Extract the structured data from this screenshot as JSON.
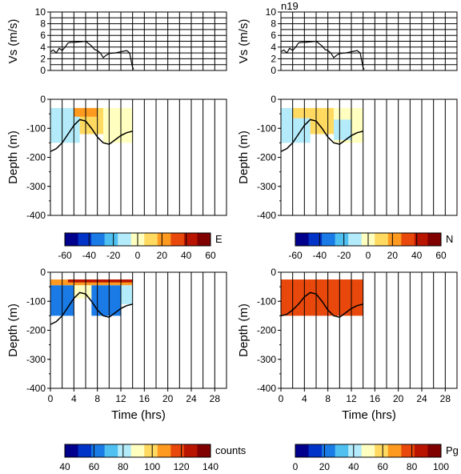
{
  "figure_label": "n19",
  "chart_data": [
    {
      "id": "vs-left",
      "type": "line",
      "ylabel": "Vs (m/s)",
      "ylim": [
        0,
        10
      ],
      "yticks": [
        "0",
        "2",
        "4",
        "6",
        "8",
        "10"
      ],
      "xlim": [
        0,
        30
      ],
      "grid": true,
      "series": [
        {
          "x": [
            0,
            0.5,
            1,
            1.5,
            2,
            2.5,
            3,
            3.5,
            4,
            5,
            6,
            7,
            7.5,
            8,
            8.5,
            9,
            9.5,
            10,
            11,
            12,
            13,
            13.5,
            14,
            14.2
          ],
          "y": [
            3.2,
            3.5,
            3.0,
            3.8,
            3.4,
            4.0,
            4.7,
            4.8,
            4.8,
            4.9,
            5.0,
            4.2,
            3.6,
            3.4,
            3.0,
            2.2,
            2.6,
            2.9,
            3.0,
            3.2,
            3.4,
            3.0,
            0.5,
            0.2
          ]
        }
      ]
    },
    {
      "id": "vs-right",
      "type": "line",
      "ylabel": "Vs (m/s)",
      "ylim": [
        0,
        10
      ],
      "yticks": [
        "0",
        "2",
        "4",
        "6",
        "8",
        "10"
      ],
      "xlim": [
        0,
        30
      ],
      "grid": true,
      "series": [
        {
          "x": [
            0,
            0.5,
            1,
            1.5,
            2,
            2.5,
            3,
            3.5,
            4,
            5,
            6,
            7,
            7.5,
            8,
            8.5,
            9,
            9.5,
            10,
            11,
            12,
            13,
            13.5,
            14,
            14.2
          ],
          "y": [
            3.2,
            3.5,
            3.0,
            3.8,
            3.4,
            4.0,
            4.7,
            4.8,
            4.8,
            4.9,
            5.0,
            4.2,
            3.6,
            3.4,
            3.0,
            2.2,
            2.6,
            2.9,
            3.0,
            3.2,
            3.4,
            3.0,
            0.5,
            0.2
          ]
        }
      ]
    },
    {
      "id": "depth-E",
      "type": "heatmap",
      "ylabel": "Depth (m)",
      "ylim": [
        -400,
        0
      ],
      "yticks": [
        "0",
        "-100",
        "-200",
        "-300",
        "-400"
      ],
      "xlim": [
        0,
        30
      ],
      "palette": "E",
      "seabed": {
        "x": [
          0,
          1,
          2,
          3,
          4,
          5,
          6,
          7,
          8,
          9,
          10,
          11,
          12,
          13,
          14
        ],
        "y": [
          -180,
          -170,
          -150,
          -120,
          -90,
          -70,
          -75,
          -100,
          -130,
          -150,
          -155,
          -140,
          -125,
          -115,
          -110
        ]
      },
      "blocks": [
        {
          "x0": 0,
          "x1": 5,
          "y0": -30,
          "y1": -150,
          "level": 0.42
        },
        {
          "x0": 5,
          "x1": 9,
          "y0": -30,
          "y1": -120,
          "level": 0.58
        },
        {
          "x0": 9,
          "x1": 14,
          "y0": -30,
          "y1": -150,
          "level": 0.52
        },
        {
          "x0": 4,
          "x1": 8,
          "y0": -30,
          "y1": -60,
          "level": 0.66
        },
        {
          "x0": 0,
          "x1": 3,
          "y0": -60,
          "y1": -120,
          "level": 0.36
        }
      ]
    },
    {
      "id": "depth-N",
      "type": "heatmap",
      "ylabel": "Depth (m)",
      "ylim": [
        -400,
        0
      ],
      "yticks": [
        "0",
        "-100",
        "-200",
        "-300",
        "-400"
      ],
      "xlim": [
        0,
        30
      ],
      "palette": "N",
      "seabed": {
        "x": [
          0,
          1,
          2,
          3,
          4,
          5,
          6,
          7,
          8,
          9,
          10,
          11,
          12,
          13,
          14
        ],
        "y": [
          -180,
          -170,
          -150,
          -120,
          -90,
          -70,
          -75,
          -100,
          -130,
          -150,
          -155,
          -140,
          -125,
          -115,
          -110
        ]
      },
      "blocks": [
        {
          "x0": 0,
          "x1": 5,
          "y0": -30,
          "y1": -150,
          "level": 0.44
        },
        {
          "x0": 5,
          "x1": 9,
          "y0": -30,
          "y1": -120,
          "level": 0.56
        },
        {
          "x0": 9,
          "x1": 14,
          "y0": -30,
          "y1": -150,
          "level": 0.5
        },
        {
          "x0": 2,
          "x1": 7,
          "y0": -30,
          "y1": -65,
          "level": 0.64
        },
        {
          "x0": 9,
          "x1": 12,
          "y0": -70,
          "y1": -140,
          "level": 0.4
        }
      ]
    },
    {
      "id": "depth-counts",
      "type": "heatmap",
      "ylabel": "Depth (m)",
      "ylim": [
        -400,
        0
      ],
      "yticks": [
        "0",
        "-100",
        "-200",
        "-300",
        "-400"
      ],
      "xlim": [
        0,
        30
      ],
      "xticks": [
        "0",
        "4",
        "8",
        "12",
        "16",
        "20",
        "24",
        "28"
      ],
      "xlabel": "Time (hrs)",
      "palette": "counts",
      "seabed": {
        "x": [
          0,
          1,
          2,
          3,
          4,
          5,
          6,
          7,
          8,
          9,
          10,
          11,
          12,
          13,
          14
        ],
        "y": [
          -180,
          -170,
          -150,
          -120,
          -90,
          -70,
          -75,
          -100,
          -130,
          -150,
          -155,
          -140,
          -125,
          -115,
          -110
        ]
      },
      "blocks": [
        {
          "x0": 0,
          "x1": 14,
          "y0": -25,
          "y1": -45,
          "level": 0.7
        },
        {
          "x0": 3,
          "x1": 14,
          "y0": -25,
          "y1": -35,
          "level": 0.92
        },
        {
          "x0": 0,
          "x1": 4,
          "y0": -45,
          "y1": -150,
          "level": 0.22
        },
        {
          "x0": 4,
          "x1": 7,
          "y0": -45,
          "y1": -90,
          "level": 0.45
        },
        {
          "x0": 7,
          "x1": 12,
          "y0": -45,
          "y1": -150,
          "level": 0.2
        },
        {
          "x0": 12,
          "x1": 14,
          "y0": -45,
          "y1": -110,
          "level": 0.4
        }
      ]
    },
    {
      "id": "depth-Pg",
      "type": "heatmap",
      "ylabel": "Depth (m)",
      "ylim": [
        -400,
        0
      ],
      "yticks": [
        "0",
        "-100",
        "-200",
        "-300",
        "-400"
      ],
      "xlim": [
        0,
        30
      ],
      "xticks": [
        "0",
        "4",
        "8",
        "12",
        "16",
        "20",
        "24",
        "28"
      ],
      "xlabel": "Time (hrs)",
      "palette": "Pg",
      "seabed": {
        "x": [
          0,
          1,
          2,
          3,
          4,
          5,
          6,
          7,
          8,
          9,
          10,
          11,
          12,
          13,
          14
        ],
        "y": [
          -150,
          -145,
          -130,
          -110,
          -85,
          -70,
          -75,
          -100,
          -130,
          -150,
          -155,
          -140,
          -125,
          -115,
          -110
        ]
      },
      "blocks": [
        {
          "x0": 0,
          "x1": 14,
          "y0": -25,
          "y1": -150,
          "level": 0.78
        },
        {
          "x0": 6,
          "x1": 12,
          "y0": -25,
          "y1": -100,
          "level": 0.84
        }
      ]
    }
  ],
  "colorbars": [
    {
      "id": "cb-E",
      "label": "E",
      "ticks": [
        "-60",
        "-40",
        "-20",
        "0",
        "20",
        "40",
        "60"
      ],
      "palette": "div"
    },
    {
      "id": "cb-N",
      "label": "N",
      "ticks": [
        "-60",
        "-40",
        "-20",
        "0",
        "20",
        "40",
        "60"
      ],
      "palette": "div"
    },
    {
      "id": "cb-counts",
      "label": "counts",
      "ticks": [
        "40",
        "60",
        "80",
        "100",
        "120",
        "140"
      ],
      "palette": "div"
    },
    {
      "id": "cb-Pg",
      "label": "Pg",
      "ticks": [
        "0",
        "20",
        "40",
        "60",
        "80",
        "100"
      ],
      "palette": "div"
    }
  ],
  "colors": {
    "palette": [
      "#00008c",
      "#0033c8",
      "#1a7ae6",
      "#4fc0f0",
      "#b4ebfa",
      "#ffffc0",
      "#ffd960",
      "#ff9a20",
      "#e8480c",
      "#b81400",
      "#800000"
    ]
  }
}
